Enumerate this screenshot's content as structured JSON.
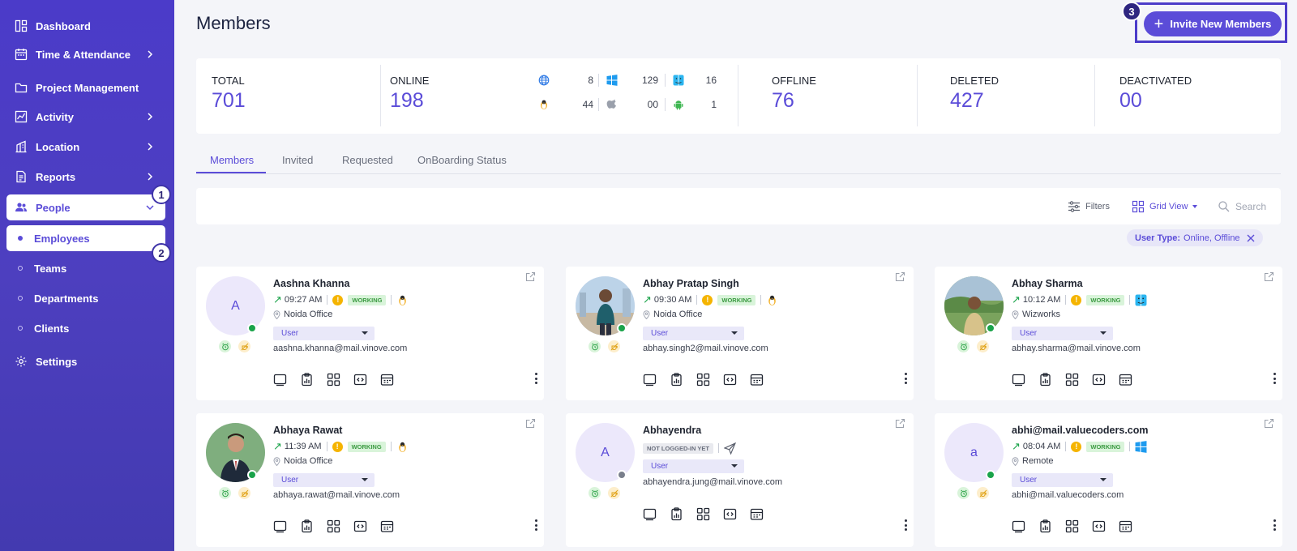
{
  "sidebar": {
    "items": [
      {
        "label": "Dashboard",
        "icon": "dashboard-icon"
      },
      {
        "label": "Time & Attendance",
        "icon": "calendar-icon",
        "chevron": true
      },
      {
        "label": "Project Management",
        "icon": "folder-icon"
      },
      {
        "label": "Activity",
        "icon": "chart-line-icon",
        "chevron": true
      },
      {
        "label": "Location",
        "icon": "building-icon",
        "chevron": true
      },
      {
        "label": "Reports",
        "icon": "report-icon",
        "chevron": true
      },
      {
        "label": "People",
        "icon": "people-icon",
        "chevron": true,
        "expanded": true,
        "step": "1"
      },
      {
        "label": "Settings",
        "icon": "gear-icon"
      }
    ],
    "people_sub": [
      {
        "label": "Employees",
        "active": true,
        "step": "2"
      },
      {
        "label": "Teams"
      },
      {
        "label": "Departments"
      },
      {
        "label": "Clients"
      }
    ]
  },
  "header": {
    "title": "Members",
    "invite_label": "Invite New Members",
    "invite_step": "3"
  },
  "stats": {
    "total": {
      "label": "TOTAL",
      "value": "701"
    },
    "online": {
      "label": "ONLINE",
      "value": "198",
      "os": [
        {
          "icon": "globe-icon",
          "count": "8"
        },
        {
          "icon": "windows-icon",
          "count": "129"
        },
        {
          "icon": "finder-icon",
          "count": "16"
        },
        {
          "icon": "linux-icon",
          "count": "44"
        },
        {
          "icon": "apple-icon",
          "count": "00"
        },
        {
          "icon": "android-icon",
          "count": "1"
        }
      ]
    },
    "offline": {
      "label": "OFFLINE",
      "value": "76"
    },
    "deleted": {
      "label": "DELETED",
      "value": "427"
    },
    "deactivated": {
      "label": "DEACTIVATED",
      "value": "00"
    }
  },
  "tabs": [
    "Members",
    "Invited",
    "Requested",
    "OnBoarding Status"
  ],
  "toolbar": {
    "filters": "Filters",
    "view": "Grid View",
    "search_placeholder": "Search"
  },
  "filter_chip": {
    "key": "User Type:",
    "value": "Online, Offline"
  },
  "members": [
    {
      "name": "Aashna Khanna",
      "initial": "A",
      "time": "09:27 AM",
      "status": "WORKING",
      "os": "linux-icon",
      "location": "Noida Office",
      "role": "User",
      "email": "aashna.khanna@mail.vinove.com",
      "online": true
    },
    {
      "name": "Abhay Pratap Singh",
      "initial": "",
      "time": "09:30 AM",
      "status": "WORKING",
      "os": "linux-icon",
      "location": "Noida Office",
      "role": "User",
      "email": "abhay.singh2@mail.vinove.com",
      "online": true
    },
    {
      "name": "Abhay Sharma",
      "initial": "",
      "time": "10:12 AM",
      "status": "WORKING",
      "os": "finder-icon",
      "location": "Wizworks",
      "role": "User",
      "email": "abhay.sharma@mail.vinove.com",
      "online": true
    },
    {
      "name": "Abhaya Rawat",
      "initial": "",
      "time": "11:39 AM",
      "status": "WORKING",
      "os": "linux-icon",
      "location": "Noida Office",
      "role": "User",
      "email": "abhaya.rawat@mail.vinove.com",
      "online": true
    },
    {
      "name": "Abhayendra",
      "initial": "A",
      "time": "",
      "status": "NOT LOGGED-IN YET",
      "os": "send-icon",
      "location": "",
      "role": "User",
      "email": "abhayendra.jung@mail.vinove.com",
      "online": false
    },
    {
      "name": "abhi@mail.valuecoders.com",
      "initial": "a",
      "time": "08:04 AM",
      "status": "WORKING",
      "os": "windows-icon",
      "location": "Remote",
      "role": "User",
      "email": "abhi@mail.valuecoders.com",
      "online": true
    }
  ],
  "colors": {
    "accent": "#5b4cd8",
    "sidebar": "#4b3bc9",
    "working_bg": "#d9f4da",
    "online": "#1aa34a",
    "offline": "#7a7f8c"
  }
}
